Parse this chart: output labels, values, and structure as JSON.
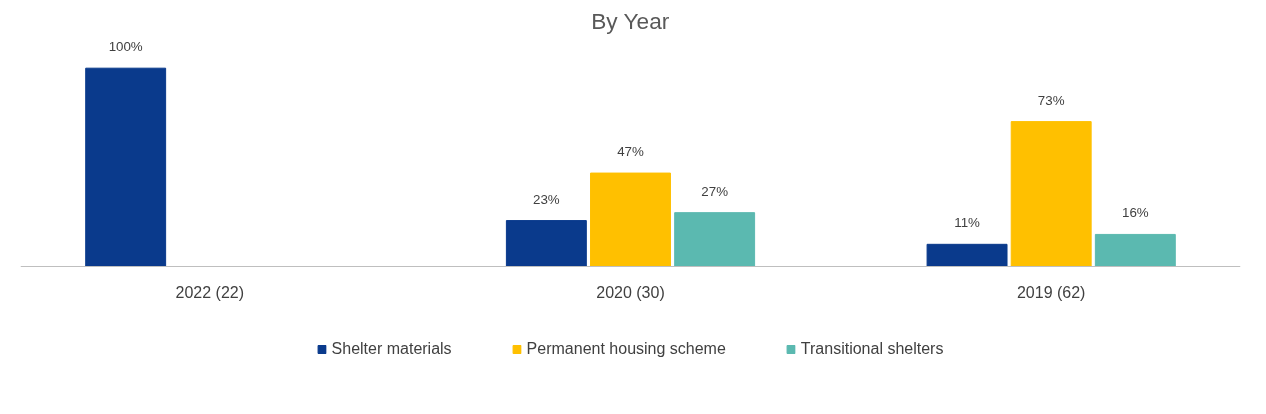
{
  "chart_data": {
    "type": "bar",
    "title": "By Year",
    "categories": [
      "2022 (22)",
      "2020 (30)",
      "2019 (62)"
    ],
    "series": [
      {
        "name": "Shelter materials",
        "color": "#0a3a8c",
        "values": [
          100,
          23,
          11
        ],
        "value_labels": [
          "100%",
          "23%",
          "11%"
        ]
      },
      {
        "name": "Permanent housing scheme",
        "color": "#ffc000",
        "values": [
          null,
          47,
          73
        ],
        "value_labels": [
          null,
          "47%",
          "73%"
        ]
      },
      {
        "name": "Transitional shelters",
        "color": "#5bb9b0",
        "values": [
          null,
          27,
          16
        ],
        "value_labels": [
          null,
          "27%",
          "16%"
        ]
      }
    ],
    "legend": "bottom",
    "grid": false
  }
}
